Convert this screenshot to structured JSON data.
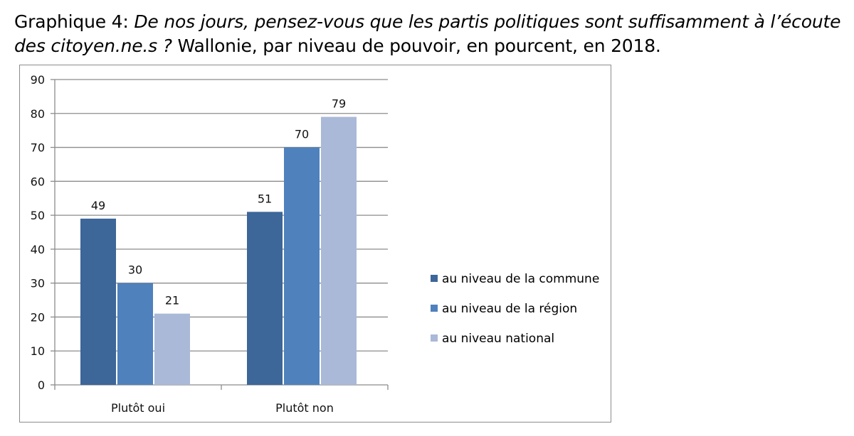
{
  "caption": {
    "prefix": "Graphique 4: ",
    "question": "De nos jours, pensez-vous que les partis politiques sont suffisamment à l’écoute des citoyen.ne.s ?",
    "suffix": " Wallonie, par niveau de pouvoir, en pourcent, en 2018."
  },
  "chart_data": {
    "type": "bar",
    "categories": [
      "Plutôt oui",
      "Plutôt non"
    ],
    "series": [
      {
        "name": "au niveau de la commune",
        "values": [
          49,
          51
        ],
        "color": "#3d6699"
      },
      {
        "name": "au niveau de la région",
        "values": [
          30,
          70
        ],
        "color": "#4f81bd"
      },
      {
        "name": "au niveau national",
        "values": [
          21,
          79
        ],
        "color": "#aab9d8"
      }
    ],
    "ylim": [
      0,
      90
    ],
    "yticks": [
      0,
      10,
      20,
      30,
      40,
      50,
      60,
      70,
      80,
      90
    ],
    "grid": true,
    "legend_position": "right",
    "data_labels": true
  }
}
